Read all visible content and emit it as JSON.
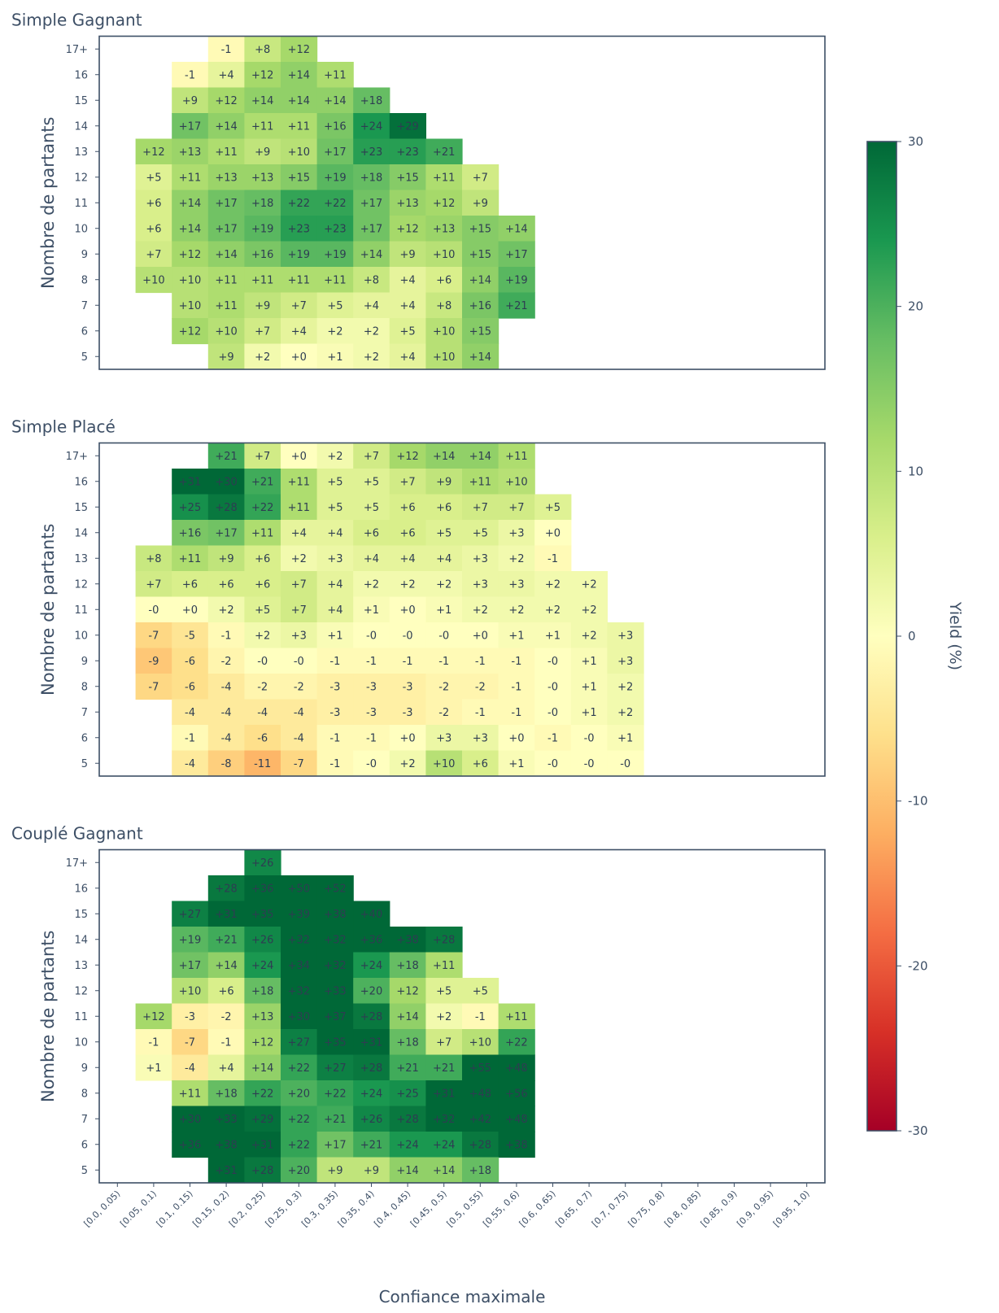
{
  "chart_data": {
    "type": "heatmap",
    "x_categories": [
      "[0.0, 0.05)",
      "[0.05, 0.1)",
      "[0.1, 0.15)",
      "[0.15, 0.2)",
      "[0.2, 0.25)",
      "[0.25, 0.3)",
      "[0.3, 0.35)",
      "[0.35, 0.4)",
      "[0.4, 0.45)",
      "[0.45, 0.5)",
      "[0.5, 0.55)",
      "[0.55, 0.6)",
      "[0.6, 0.65)",
      "[0.65, 0.7)",
      "[0.7, 0.75)",
      "[0.75, 0.8)",
      "[0.8, 0.85)",
      "[0.85, 0.9)",
      "[0.9, 0.95)",
      "[0.95, 1.0)"
    ],
    "y_categories": [
      "17+",
      "16",
      "15",
      "14",
      "13",
      "12",
      "11",
      "10",
      "9",
      "8",
      "7",
      "6",
      "5"
    ],
    "xlabel": "Confiance maximale",
    "ylabel": "Nombre de partants",
    "colorbar": {
      "label": "Yield (%)",
      "range": [
        -30,
        30
      ],
      "ticks": [
        "30",
        "20",
        "10",
        "0",
        "-10",
        "-20",
        "-30"
      ],
      "colormap": "RdYlGn"
    },
    "panels": [
      {
        "title": "Simple Gagnant",
        "cells": [
          [
            null,
            null,
            null,
            "-1",
            "+8",
            "+12",
            null,
            null,
            null,
            null,
            null,
            null,
            null,
            null,
            null,
            null,
            null,
            null,
            null,
            null
          ],
          [
            null,
            null,
            "-1",
            "+4",
            "+12",
            "+14",
            "+11",
            null,
            null,
            null,
            null,
            null,
            null,
            null,
            null,
            null,
            null,
            null,
            null,
            null
          ],
          [
            null,
            null,
            "+9",
            "+12",
            "+14",
            "+14",
            "+14",
            "+18",
            null,
            null,
            null,
            null,
            null,
            null,
            null,
            null,
            null,
            null,
            null,
            null
          ],
          [
            null,
            null,
            "+17",
            "+14",
            "+11",
            "+11",
            "+16",
            "+24",
            "+29",
            null,
            null,
            null,
            null,
            null,
            null,
            null,
            null,
            null,
            null,
            null
          ],
          [
            null,
            "+12",
            "+13",
            "+11",
            "+9",
            "+10",
            "+17",
            "+23",
            "+23",
            "+21",
            null,
            null,
            null,
            null,
            null,
            null,
            null,
            null,
            null,
            null
          ],
          [
            null,
            "+5",
            "+11",
            "+13",
            "+13",
            "+15",
            "+19",
            "+18",
            "+15",
            "+11",
            "+7",
            null,
            null,
            null,
            null,
            null,
            null,
            null,
            null,
            null
          ],
          [
            null,
            "+6",
            "+14",
            "+17",
            "+18",
            "+22",
            "+22",
            "+17",
            "+13",
            "+12",
            "+9",
            null,
            null,
            null,
            null,
            null,
            null,
            null,
            null,
            null
          ],
          [
            null,
            "+6",
            "+14",
            "+17",
            "+19",
            "+23",
            "+23",
            "+17",
            "+12",
            "+13",
            "+15",
            "+14",
            null,
            null,
            null,
            null,
            null,
            null,
            null,
            null
          ],
          [
            null,
            "+7",
            "+12",
            "+14",
            "+16",
            "+19",
            "+19",
            "+14",
            "+9",
            "+10",
            "+15",
            "+17",
            null,
            null,
            null,
            null,
            null,
            null,
            null,
            null
          ],
          [
            null,
            "+10",
            "+10",
            "+11",
            "+11",
            "+11",
            "+11",
            "+8",
            "+4",
            "+6",
            "+14",
            "+19",
            null,
            null,
            null,
            null,
            null,
            null,
            null,
            null
          ],
          [
            null,
            null,
            "+10",
            "+11",
            "+9",
            "+7",
            "+5",
            "+4",
            "+4",
            "+8",
            "+16",
            "+21",
            null,
            null,
            null,
            null,
            null,
            null,
            null,
            null
          ],
          [
            null,
            null,
            "+12",
            "+10",
            "+7",
            "+4",
            "+2",
            "+2",
            "+5",
            "+10",
            "+15",
            null,
            null,
            null,
            null,
            null,
            null,
            null,
            null,
            null
          ],
          [
            null,
            null,
            null,
            "+9",
            "+2",
            "+0",
            "+1",
            "+2",
            "+4",
            "+10",
            "+14",
            null,
            null,
            null,
            null,
            null,
            null,
            null,
            null,
            null
          ]
        ]
      },
      {
        "title": "Simple Placé",
        "cells": [
          [
            null,
            null,
            null,
            "+21",
            "+7",
            "+0",
            "+2",
            "+7",
            "+12",
            "+14",
            "+14",
            "+11",
            null,
            null,
            null,
            null,
            null,
            null,
            null,
            null
          ],
          [
            null,
            null,
            "+31",
            "+30",
            "+21",
            "+11",
            "+5",
            "+5",
            "+7",
            "+9",
            "+11",
            "+10",
            null,
            null,
            null,
            null,
            null,
            null,
            null,
            null
          ],
          [
            null,
            null,
            "+25",
            "+28",
            "+22",
            "+11",
            "+5",
            "+5",
            "+6",
            "+6",
            "+7",
            "+7",
            "+5",
            null,
            null,
            null,
            null,
            null,
            null,
            null
          ],
          [
            null,
            null,
            "+16",
            "+17",
            "+11",
            "+4",
            "+4",
            "+6",
            "+6",
            "+5",
            "+5",
            "+3",
            "+0",
            null,
            null,
            null,
            null,
            null,
            null,
            null
          ],
          [
            null,
            "+8",
            "+11",
            "+9",
            "+6",
            "+2",
            "+3",
            "+4",
            "+4",
            "+4",
            "+3",
            "+2",
            "-1",
            null,
            null,
            null,
            null,
            null,
            null,
            null
          ],
          [
            null,
            "+7",
            "+6",
            "+6",
            "+6",
            "+7",
            "+4",
            "+2",
            "+2",
            "+2",
            "+3",
            "+3",
            "+2",
            "+2",
            null,
            null,
            null,
            null,
            null,
            null
          ],
          [
            null,
            "-0",
            "+0",
            "+2",
            "+5",
            "+7",
            "+4",
            "+1",
            "+0",
            "+1",
            "+2",
            "+2",
            "+2",
            "+2",
            null,
            null,
            null,
            null,
            null,
            null
          ],
          [
            null,
            "-7",
            "-5",
            "-1",
            "+2",
            "+3",
            "+1",
            "-0",
            "-0",
            "-0",
            "+0",
            "+1",
            "+1",
            "+2",
            "+3",
            null,
            null,
            null,
            null,
            null
          ],
          [
            null,
            "-9",
            "-6",
            "-2",
            "-0",
            "-0",
            "-1",
            "-1",
            "-1",
            "-1",
            "-1",
            "-1",
            "-0",
            "+1",
            "+3",
            null,
            null,
            null,
            null,
            null
          ],
          [
            null,
            "-7",
            "-6",
            "-4",
            "-2",
            "-2",
            "-3",
            "-3",
            "-3",
            "-2",
            "-2",
            "-1",
            "-0",
            "+1",
            "+2",
            null,
            null,
            null,
            null,
            null
          ],
          [
            null,
            null,
            "-4",
            "-4",
            "-4",
            "-4",
            "-3",
            "-3",
            "-3",
            "-2",
            "-1",
            "-1",
            "-0",
            "+1",
            "+2",
            null,
            null,
            null,
            null,
            null
          ],
          [
            null,
            null,
            "-1",
            "-4",
            "-6",
            "-4",
            "-1",
            "-1",
            "+0",
            "+3",
            "+3",
            "+0",
            "-1",
            "-0",
            "+1",
            null,
            null,
            null,
            null,
            null
          ],
          [
            null,
            null,
            "-4",
            "-8",
            "-11",
            "-7",
            "-1",
            "-0",
            "+2",
            "+10",
            "+6",
            "+1",
            "-0",
            "-0",
            "-0",
            null,
            null,
            null,
            null,
            null
          ]
        ]
      },
      {
        "title": "Couplé Gagnant",
        "cells": [
          [
            null,
            null,
            null,
            null,
            "+26",
            null,
            null,
            null,
            null,
            null,
            null,
            null,
            null,
            null,
            null,
            null,
            null,
            null,
            null,
            null
          ],
          [
            null,
            null,
            null,
            "+28",
            "+36",
            "+50",
            "+52",
            null,
            null,
            null,
            null,
            null,
            null,
            null,
            null,
            null,
            null,
            null,
            null,
            null
          ],
          [
            null,
            null,
            "+27",
            "+31",
            "+35",
            "+39",
            "+38",
            "+40",
            null,
            null,
            null,
            null,
            null,
            null,
            null,
            null,
            null,
            null,
            null,
            null
          ],
          [
            null,
            null,
            "+19",
            "+21",
            "+26",
            "+32",
            "+32",
            "+36",
            "+38",
            "+28",
            null,
            null,
            null,
            null,
            null,
            null,
            null,
            null,
            null,
            null
          ],
          [
            null,
            null,
            "+17",
            "+14",
            "+24",
            "+34",
            "+32",
            "+24",
            "+18",
            "+11",
            null,
            null,
            null,
            null,
            null,
            null,
            null,
            null,
            null,
            null
          ],
          [
            null,
            null,
            "+10",
            "+6",
            "+18",
            "+32",
            "+33",
            "+20",
            "+12",
            "+5",
            "+5",
            null,
            null,
            null,
            null,
            null,
            null,
            null,
            null,
            null
          ],
          [
            null,
            "+12",
            "-3",
            "-2",
            "+13",
            "+30",
            "+37",
            "+28",
            "+14",
            "+2",
            "-1",
            "+11",
            null,
            null,
            null,
            null,
            null,
            null,
            null,
            null
          ],
          [
            null,
            "-1",
            "-7",
            "-1",
            "+12",
            "+27",
            "+35",
            "+31",
            "+18",
            "+7",
            "+10",
            "+22",
            null,
            null,
            null,
            null,
            null,
            null,
            null,
            null
          ],
          [
            null,
            "+1",
            "-4",
            "+4",
            "+14",
            "+22",
            "+27",
            "+28",
            "+21",
            "+21",
            "+55",
            "+48",
            null,
            null,
            null,
            null,
            null,
            null,
            null,
            null
          ],
          [
            null,
            null,
            "+11",
            "+18",
            "+22",
            "+20",
            "+22",
            "+24",
            "+25",
            "+31",
            "+48",
            "+56",
            null,
            null,
            null,
            null,
            null,
            null,
            null,
            null
          ],
          [
            null,
            null,
            "+30",
            "+33",
            "+29",
            "+22",
            "+21",
            "+26",
            "+28",
            "+32",
            "+42",
            "+48",
            null,
            null,
            null,
            null,
            null,
            null,
            null,
            null
          ],
          [
            null,
            null,
            "+36",
            "+38",
            "+31",
            "+22",
            "+17",
            "+21",
            "+24",
            "+24",
            "+28",
            "+38",
            null,
            null,
            null,
            null,
            null,
            null,
            null,
            null
          ],
          [
            null,
            null,
            null,
            "+31",
            "+28",
            "+20",
            "+9",
            "+9",
            "+14",
            "+14",
            "+18",
            null,
            null,
            null,
            null,
            null,
            null,
            null,
            null,
            null
          ]
        ]
      }
    ]
  }
}
